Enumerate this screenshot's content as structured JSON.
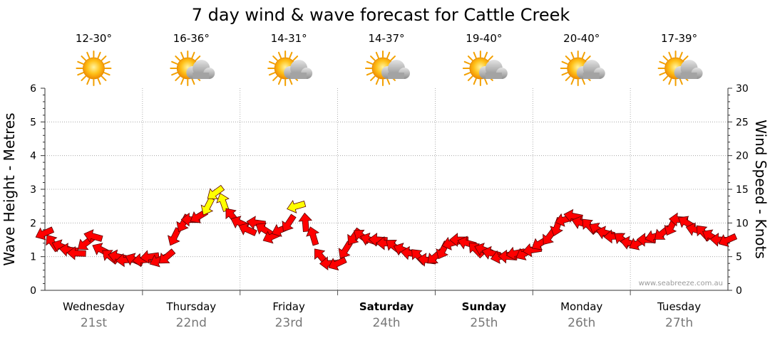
{
  "chart_data": {
    "type": "line",
    "title": "7 day wind & wave forecast for Cattle Creek",
    "ylabel_left": "Wave Height - Metres",
    "ylabel_right": "Wind Speed - Knots",
    "ylim_left": [
      0,
      6
    ],
    "ylim_right": [
      0,
      30
    ],
    "yticks_left": [
      "0",
      "1",
      "2",
      "3",
      "4",
      "5",
      "6"
    ],
    "yticks_right": [
      "0",
      "5",
      "10",
      "15",
      "20",
      "25",
      "30"
    ],
    "watermark": "www.seabreeze.com.au",
    "days": [
      {
        "name": "Wednesday",
        "date": "21st",
        "temp": "12-30°",
        "icon": "sun-icon",
        "bold": false
      },
      {
        "name": "Thursday",
        "date": "22nd",
        "temp": "16-36°",
        "icon": "partly-cloudy-icon",
        "bold": false
      },
      {
        "name": "Friday",
        "date": "23rd",
        "temp": "14-31°",
        "icon": "partly-cloudy-icon",
        "bold": false
      },
      {
        "name": "Saturday",
        "date": "24th",
        "temp": "14-37°",
        "icon": "partly-cloudy-icon",
        "bold": true
      },
      {
        "name": "Sunday",
        "date": "25th",
        "temp": "19-40°",
        "icon": "partly-cloudy-icon",
        "bold": true
      },
      {
        "name": "Monday",
        "date": "26th",
        "temp": "20-40°",
        "icon": "partly-cloudy-icon",
        "bold": false
      },
      {
        "name": "Tuesday",
        "date": "27th",
        "temp": "17-39°",
        "icon": "partly-cloudy-icon",
        "bold": false
      }
    ],
    "series": [
      {
        "name": "Wind",
        "unit": "knots",
        "x_days": [
          0,
          0.08,
          0.17,
          0.25,
          0.33,
          0.42,
          0.5,
          0.58,
          0.67,
          0.75,
          0.83,
          0.92,
          1,
          1.08,
          1.17,
          1.25,
          1.33,
          1.42,
          1.5,
          1.58,
          1.67,
          1.75,
          1.83,
          1.92,
          2,
          2.08,
          2.17,
          2.25,
          2.33,
          2.42,
          2.5,
          2.58,
          2.67,
          2.75,
          2.83,
          2.92,
          3,
          3.08,
          3.17,
          3.25,
          3.33,
          3.42,
          3.5,
          3.58,
          3.67,
          3.75,
          3.83,
          3.92,
          4,
          4.08,
          4.17,
          4.25,
          4.33,
          4.42,
          4.5,
          4.58,
          4.67,
          4.75,
          4.83,
          4.92,
          5,
          5.08,
          5.17,
          5.25,
          5.33,
          5.42,
          5.5,
          5.58,
          5.67,
          5.75,
          5.83,
          5.92,
          6,
          6.08,
          6.17,
          6.25,
          6.33,
          6.42,
          6.5,
          6.58,
          6.67,
          6.75,
          6.83,
          6.92,
          7
        ],
        "values": [
          8.5,
          7,
          6.5,
          6,
          5.5,
          7,
          8,
          6,
          5,
          5,
          4.5,
          4.5,
          4.5,
          5,
          4.5,
          5,
          8,
          10,
          10.5,
          11,
          12.5,
          14.5,
          13,
          11,
          10,
          9,
          10,
          9,
          8,
          9,
          10,
          12.5,
          10,
          8,
          5,
          4,
          4,
          6,
          8,
          8,
          7.5,
          7.5,
          7,
          6.5,
          6,
          5.5,
          5,
          4.5,
          5,
          6,
          7,
          7.5,
          7,
          6,
          6,
          5.5,
          5,
          5,
          5.5,
          5.5,
          6,
          7,
          8,
          9.5,
          10.5,
          11,
          10,
          9.5,
          9,
          8.5,
          8,
          7.5,
          7,
          7,
          7.5,
          8,
          8.5,
          9.5,
          10.5,
          10,
          9,
          8.5,
          8,
          7.5,
          7.5
        ],
        "highlight_threshold": 12,
        "normal_color": "#ff0000",
        "highlight_color": "#ffff00"
      }
    ],
    "grid": true,
    "legend": "none"
  }
}
